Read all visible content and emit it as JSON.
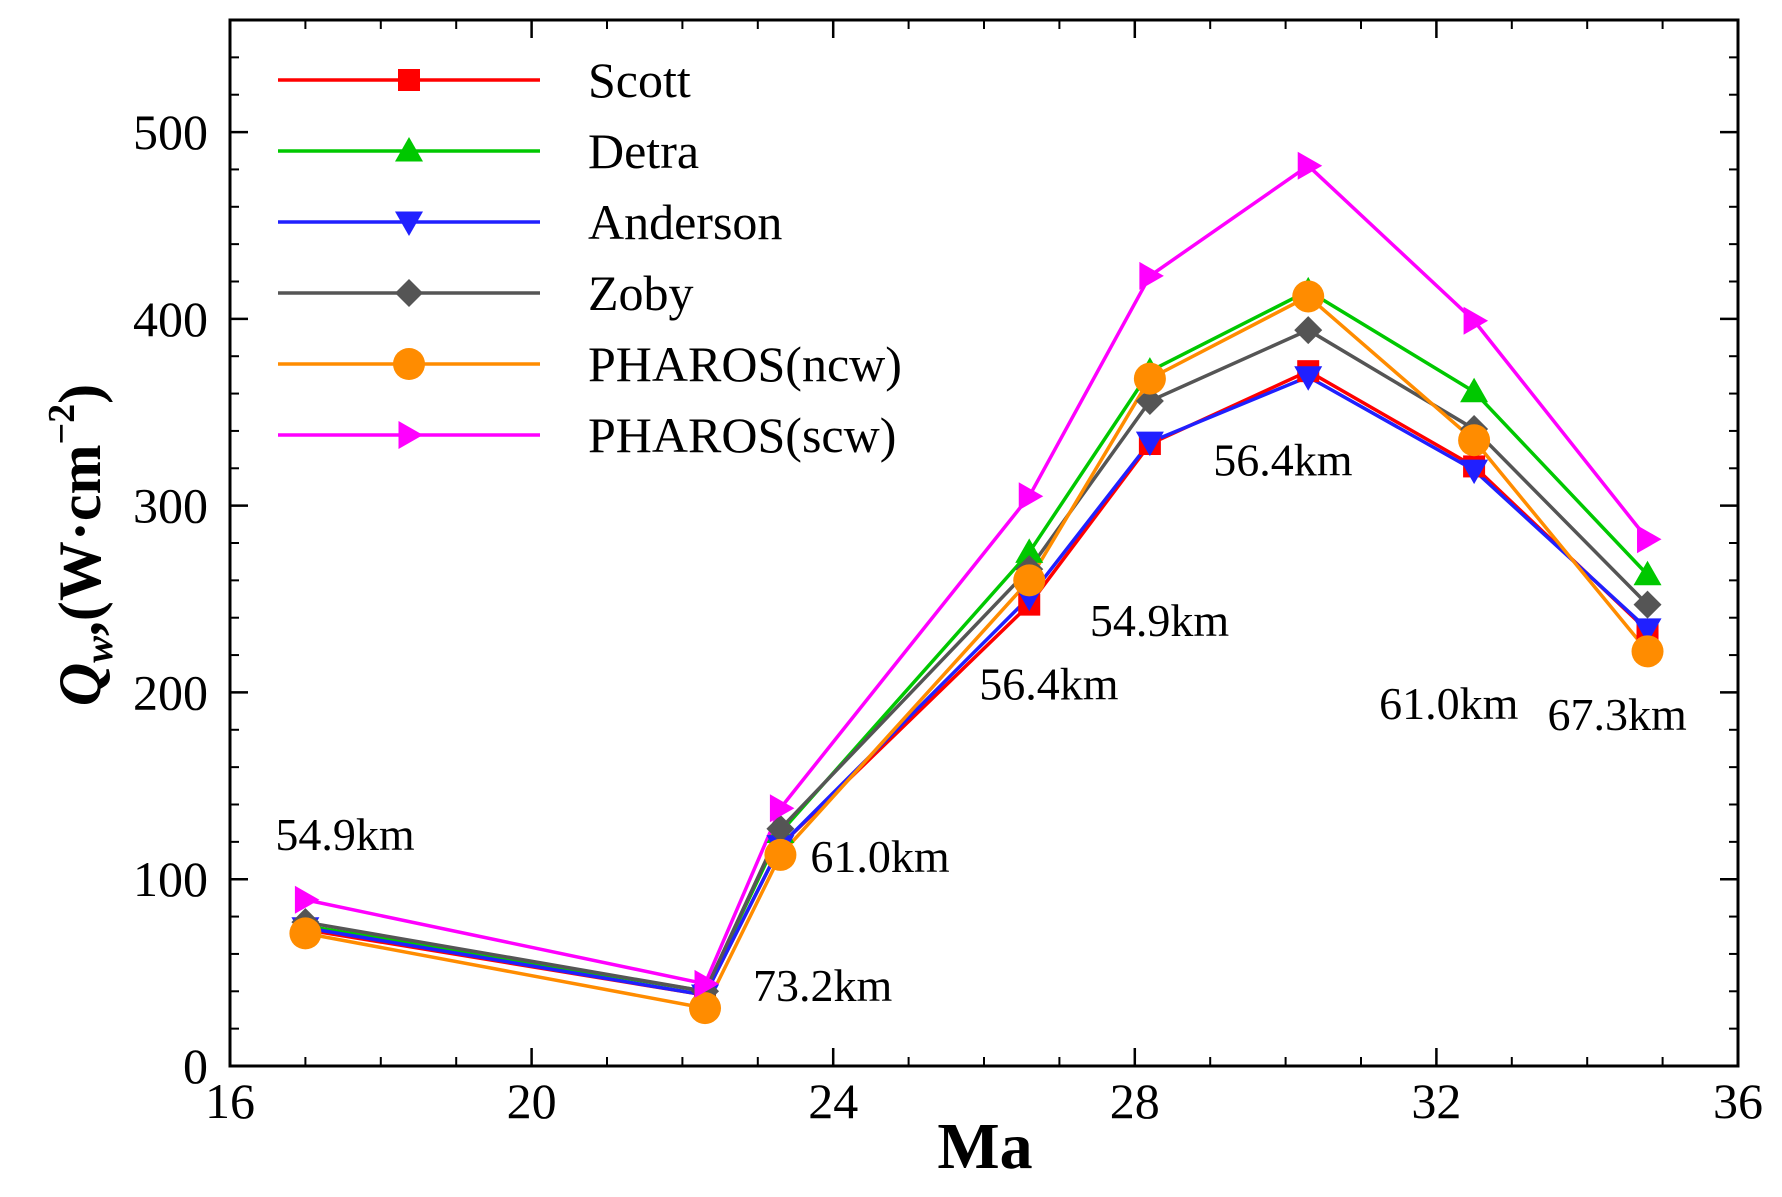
{
  "chart_data": {
    "type": "line",
    "title": "",
    "xlabel": "Ma",
    "ylabel": "Q_w (W·cm^-2)",
    "ylabel_parts": {
      "q": "Q",
      "sub": "w",
      "unit": ",(W·cm",
      "sup": "−2",
      "close": ")"
    },
    "xlim": [
      16,
      36
    ],
    "ylim": [
      0,
      560
    ],
    "x_ticks": [
      16,
      20,
      24,
      28,
      32,
      36
    ],
    "y_ticks": [
      0,
      100,
      200,
      300,
      400,
      500
    ],
    "x": [
      17,
      22.3,
      23.3,
      26.6,
      28.2,
      30.3,
      32.5,
      34.8
    ],
    "legend_position": "top-left",
    "series": [
      {
        "name": "Scott",
        "color": "#ff0000",
        "marker": "square",
        "values": [
          73,
          38,
          118,
          247,
          333,
          372,
          321,
          233
        ]
      },
      {
        "name": "Detra",
        "color": "#00c800",
        "marker": "triangle-up",
        "values": [
          75,
          40,
          125,
          275,
          372,
          415,
          361,
          263
        ]
      },
      {
        "name": "Anderson",
        "color": "#2020ff",
        "marker": "triangle-down",
        "values": [
          74,
          38,
          118,
          251,
          334,
          369,
          319,
          234
        ]
      },
      {
        "name": "Zoby",
        "color": "#555555",
        "marker": "diamond",
        "values": [
          77,
          40,
          127,
          266,
          356,
          394,
          341,
          247
        ]
      },
      {
        "name": "PHAROS(ncw)",
        "color": "#ff8c00",
        "marker": "circle",
        "values": [
          71,
          31,
          113,
          260,
          368,
          412,
          335,
          222
        ]
      },
      {
        "name": "PHAROS(scw)",
        "color": "#ff00ff",
        "marker": "triangle-right",
        "values": [
          89,
          44,
          138,
          305,
          423,
          482,
          399,
          282
        ]
      }
    ],
    "annotations": [
      {
        "text": "54.9km",
        "x": 17,
        "y": 74
      },
      {
        "text": "73.2km",
        "x": 22.3,
        "y": 36
      },
      {
        "text": "61.0km",
        "x": 23.3,
        "y": 120
      },
      {
        "text": "56.4km",
        "x": 26.6,
        "y": 255
      },
      {
        "text": "54.9km",
        "x": 28.2,
        "y": 340
      },
      {
        "text": "56.4km",
        "x": 30.3,
        "y": 375
      },
      {
        "text": "61.0km",
        "x": 32.5,
        "y": 325
      },
      {
        "text": "67.3km",
        "x": 34.8,
        "y": 228
      }
    ]
  }
}
